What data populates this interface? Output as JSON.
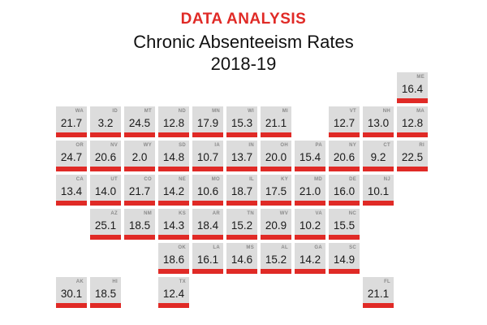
{
  "header": {
    "kicker": "DATA ANALYSIS",
    "title": "Chronic Absenteeism Rates",
    "subtitle": "2018-19"
  },
  "colors": {
    "accent": "#e02a26",
    "tile": "#dcdcdc",
    "text": "#1a1a1a",
    "abbr": "#8a8a8a"
  },
  "chart_data": {
    "type": "table",
    "title": "Chronic Absenteeism Rates",
    "subtitle": "2018-19",
    "layout": "tile-grid-map",
    "states": [
      {
        "abbr": "ME",
        "value": 16.4,
        "row": 0,
        "col": 10
      },
      {
        "abbr": "WA",
        "value": 21.7,
        "row": 1,
        "col": 0
      },
      {
        "abbr": "ID",
        "value": 3.2,
        "row": 1,
        "col": 1
      },
      {
        "abbr": "MT",
        "value": 24.5,
        "row": 1,
        "col": 2
      },
      {
        "abbr": "ND",
        "value": 12.8,
        "row": 1,
        "col": 3
      },
      {
        "abbr": "MN",
        "value": 17.9,
        "row": 1,
        "col": 4
      },
      {
        "abbr": "WI",
        "value": 15.3,
        "row": 1,
        "col": 5
      },
      {
        "abbr": "MI",
        "value": 21.1,
        "row": 1,
        "col": 6
      },
      {
        "abbr": "VT",
        "value": 12.7,
        "row": 1,
        "col": 8
      },
      {
        "abbr": "NH",
        "value": 13.0,
        "row": 1,
        "col": 9
      },
      {
        "abbr": "MA",
        "value": 12.8,
        "row": 1,
        "col": 10
      },
      {
        "abbr": "OR",
        "value": 24.7,
        "row": 2,
        "col": 0
      },
      {
        "abbr": "NV",
        "value": 20.6,
        "row": 2,
        "col": 1
      },
      {
        "abbr": "WY",
        "value": 2.0,
        "row": 2,
        "col": 2
      },
      {
        "abbr": "SD",
        "value": 14.8,
        "row": 2,
        "col": 3
      },
      {
        "abbr": "IA",
        "value": 10.7,
        "row": 2,
        "col": 4
      },
      {
        "abbr": "IN",
        "value": 13.7,
        "row": 2,
        "col": 5
      },
      {
        "abbr": "OH",
        "value": 20.0,
        "row": 2,
        "col": 6
      },
      {
        "abbr": "PA",
        "value": 15.4,
        "row": 2,
        "col": 7
      },
      {
        "abbr": "NY",
        "value": 20.6,
        "row": 2,
        "col": 8
      },
      {
        "abbr": "CT",
        "value": 9.2,
        "row": 2,
        "col": 9
      },
      {
        "abbr": "RI",
        "value": 22.5,
        "row": 2,
        "col": 10
      },
      {
        "abbr": "CA",
        "value": 13.4,
        "row": 3,
        "col": 0
      },
      {
        "abbr": "UT",
        "value": 14.0,
        "row": 3,
        "col": 1
      },
      {
        "abbr": "CO",
        "value": 21.7,
        "row": 3,
        "col": 2
      },
      {
        "abbr": "NE",
        "value": 14.2,
        "row": 3,
        "col": 3
      },
      {
        "abbr": "MO",
        "value": 10.6,
        "row": 3,
        "col": 4
      },
      {
        "abbr": "IL",
        "value": 18.7,
        "row": 3,
        "col": 5
      },
      {
        "abbr": "KY",
        "value": 17.5,
        "row": 3,
        "col": 6
      },
      {
        "abbr": "MD",
        "value": 21.0,
        "row": 3,
        "col": 7
      },
      {
        "abbr": "DE",
        "value": 16.0,
        "row": 3,
        "col": 8
      },
      {
        "abbr": "NJ",
        "value": 10.1,
        "row": 3,
        "col": 9
      },
      {
        "abbr": "AZ",
        "value": 25.1,
        "row": 4,
        "col": 1
      },
      {
        "abbr": "NM",
        "value": 18.5,
        "row": 4,
        "col": 2
      },
      {
        "abbr": "KS",
        "value": 14.3,
        "row": 4,
        "col": 3
      },
      {
        "abbr": "AR",
        "value": 18.4,
        "row": 4,
        "col": 4
      },
      {
        "abbr": "TN",
        "value": 15.2,
        "row": 4,
        "col": 5
      },
      {
        "abbr": "WV",
        "value": 20.9,
        "row": 4,
        "col": 6
      },
      {
        "abbr": "VA",
        "value": 10.2,
        "row": 4,
        "col": 7
      },
      {
        "abbr": "NC",
        "value": 15.5,
        "row": 4,
        "col": 8
      },
      {
        "abbr": "OK",
        "value": 18.6,
        "row": 5,
        "col": 3
      },
      {
        "abbr": "LA",
        "value": 16.1,
        "row": 5,
        "col": 4
      },
      {
        "abbr": "MS",
        "value": 14.6,
        "row": 5,
        "col": 5
      },
      {
        "abbr": "AL",
        "value": 15.2,
        "row": 5,
        "col": 6
      },
      {
        "abbr": "GA",
        "value": 14.2,
        "row": 5,
        "col": 7
      },
      {
        "abbr": "SC",
        "value": 14.9,
        "row": 5,
        "col": 8
      },
      {
        "abbr": "AK",
        "value": 30.1,
        "row": 6,
        "col": 0
      },
      {
        "abbr": "HI",
        "value": 18.5,
        "row": 6,
        "col": 1
      },
      {
        "abbr": "TX",
        "value": 12.4,
        "row": 6,
        "col": 3
      },
      {
        "abbr": "FL",
        "value": 21.1,
        "row": 6,
        "col": 9
      }
    ]
  }
}
